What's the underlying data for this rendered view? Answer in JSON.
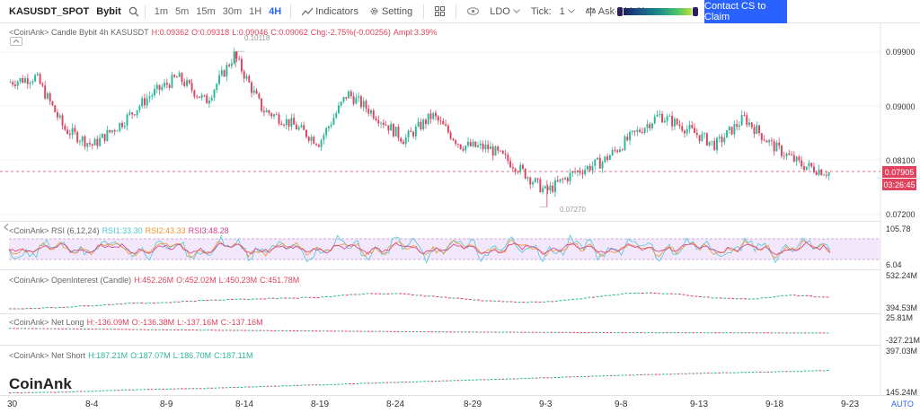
{
  "toolbar": {
    "symbol": "KASUSDT_SPOT",
    "exchange": "Bybit",
    "timeframes": [
      "1m",
      "5m",
      "15m",
      "30m",
      "1H",
      "4H"
    ],
    "active_timeframe": "4H",
    "indicators_label": "Indicators",
    "setting_label": "Setting",
    "ldo_label": "LDO",
    "tick_label": "Tick:",
    "tick_value": "1",
    "askbid_label": "Ask-Bid Cluster",
    "cta_label": "Contact CS to Claim"
  },
  "main_chart": {
    "legend_prefix": "<CoinAnk> Candle  Bybit 4h KASUSDT",
    "H": "H:0.09362",
    "O": "O:0.09318",
    "L": "L:0.09046",
    "C": "C:0.09062",
    "chg": "Chg:-2.75%(-0.00256)",
    "ampl": "Ampl:3.39%",
    "y_labels": [
      "0.09900",
      "0.09000",
      "0.08100",
      "0.07200"
    ],
    "high_annotation": "0.10118",
    "low_annotation": "0.07270",
    "last_price": "0.07905",
    "countdown": "03:26:45"
  },
  "rsi": {
    "legend_prefix": "<CoinAnk> RSI  (6,12,24)",
    "rsi1": "RSI1:33.30",
    "rsi2": "RSI2:43.33",
    "rsi3": "RSI3:48.28",
    "y_top": "105.78",
    "y_bottom": "6.04"
  },
  "open_interest": {
    "legend_prefix": "<CoinAnk> OpenInterest (Candle)",
    "H": "H:452.26M",
    "O": "O:452.02M",
    "L": "L:450.23M",
    "C": "C:451.78M",
    "y_top": "532.24M",
    "y_bottom": "394.53M"
  },
  "net_long": {
    "legend_prefix": "<CoinAnk> Net Long",
    "H": "H:-136.09M",
    "O": "O:-136.38M",
    "L": "L:-137.16M",
    "C": "C:-137.16M",
    "y_top": "25.81M",
    "y_bottom": "-327.21M"
  },
  "net_short": {
    "legend_prefix": "<CoinAnk> Net Short",
    "H": "H:187.21M",
    "O": "O:187.07M",
    "L": "L:186.70M",
    "C": "C:187.11M",
    "y_top": "397.03M",
    "y_bottom": "145.24M"
  },
  "x_axis": {
    "labels": [
      "30",
      "8-4",
      "8-9",
      "8-14",
      "8-19",
      "8-24",
      "8-29",
      "9-3",
      "9-8",
      "9-13",
      "9-18",
      "9-23"
    ]
  },
  "watermark": "CoinAnk",
  "auto_label": "AUTO",
  "colors": {
    "up": "#2bb89a",
    "down": "#e0435d",
    "accent": "#2962ff"
  },
  "chart_data": {
    "type": "candlestick",
    "interval": "4h",
    "x_range": [
      "7-30",
      "9-23"
    ],
    "price_ylim": [
      0.0715,
      0.104
    ],
    "price_anchors": [
      {
        "x": "7-30",
        "price": 0.0955
      },
      {
        "x": "8-1",
        "price": 0.0965
      },
      {
        "x": "8-3",
        "price": 0.087
      },
      {
        "x": "8-4",
        "price": 0.084
      },
      {
        "x": "8-6",
        "price": 0.088
      },
      {
        "x": "8-8",
        "price": 0.093
      },
      {
        "x": "8-10",
        "price": 0.0965
      },
      {
        "x": "8-12",
        "price": 0.092
      },
      {
        "x": "8-14",
        "price": 0.1005
      },
      {
        "x": "8-16",
        "price": 0.0905
      },
      {
        "x": "8-18",
        "price": 0.088
      },
      {
        "x": "8-20",
        "price": 0.0845
      },
      {
        "x": "8-22",
        "price": 0.0935
      },
      {
        "x": "8-24",
        "price": 0.0895
      },
      {
        "x": "8-26",
        "price": 0.085
      },
      {
        "x": "8-28",
        "price": 0.0895
      },
      {
        "x": "8-30",
        "price": 0.084
      },
      {
        "x": "9-3",
        "price": 0.0835
      },
      {
        "x": "9-5",
        "price": 0.08
      },
      {
        "x": "9-6",
        "price": 0.0755
      },
      {
        "x": "9-7",
        "price": 0.079
      },
      {
        "x": "9-9",
        "price": 0.081
      },
      {
        "x": "9-11",
        "price": 0.0855
      },
      {
        "x": "9-13",
        "price": 0.0895
      },
      {
        "x": "9-15",
        "price": 0.087
      },
      {
        "x": "9-17",
        "price": 0.084
      },
      {
        "x": "9-19",
        "price": 0.089
      },
      {
        "x": "9-21",
        "price": 0.084
      },
      {
        "x": "9-22",
        "price": 0.0805
      },
      {
        "x": "9-22",
        "price": 0.079
      }
    ],
    "high": 0.10118,
    "low": 0.0727,
    "last": 0.07905,
    "rsi_ylim": [
      6.04,
      105.78
    ],
    "rsi_last": {
      "rsi1": 33.3,
      "rsi2": 43.33,
      "rsi3": 48.28
    },
    "oi_ylim": [
      394.53,
      532.24
    ],
    "oi_unit": "M",
    "oi_anchors": [
      400,
      405,
      415,
      425,
      430,
      440,
      445,
      450,
      455,
      470,
      470,
      455,
      440,
      430,
      435,
      455,
      475,
      470,
      450,
      445,
      465,
      452
    ],
    "net_long_ylim": [
      -327.21,
      25.81
    ],
    "net_long_anchors": [
      -60,
      -70,
      -85,
      -95,
      -105,
      -115,
      -125,
      -130,
      -136,
      -137,
      -140,
      -142
    ],
    "net_short_ylim": [
      145.24,
      397.03
    ],
    "net_short_anchors": [
      150,
      155,
      165,
      175,
      180,
      190,
      200,
      210,
      220,
      230,
      240,
      250,
      260,
      270,
      278,
      285,
      292,
      300
    ]
  }
}
